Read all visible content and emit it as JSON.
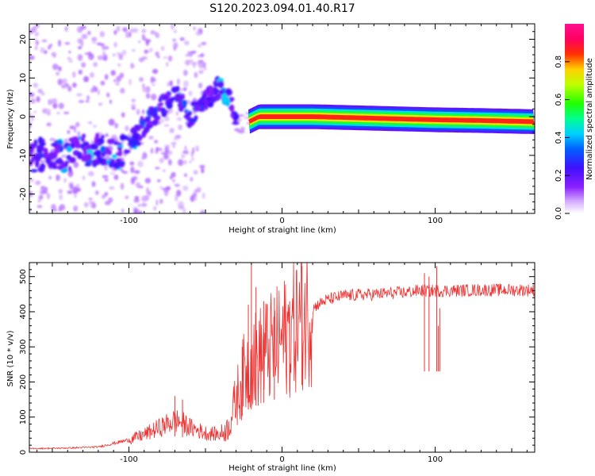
{
  "figure_title": "S120.2023.094.01.40.R17",
  "colors": {
    "snr_line": "#ee3333",
    "frame": "#000000",
    "background": "#ffffff"
  },
  "chart_data": [
    {
      "type": "heatmap",
      "title": "S120.2023.094.01.40.R17",
      "xlabel": "Height of straight line (km)",
      "ylabel": "Frequency (Hz)",
      "xlim": [
        -165,
        165
      ],
      "ylim": [
        -25,
        24
      ],
      "x_ticks": [
        -100,
        0,
        100
      ],
      "y_ticks": [
        20,
        10,
        0,
        -10,
        -20
      ],
      "grid": false,
      "colorbar": {
        "label": "Normalized spectral amplitude",
        "range": [
          0,
          1
        ],
        "ticks": [
          "0.0",
          "0.2",
          "0.4",
          "0.6",
          "0.8"
        ],
        "colormap": "rainbow (white–violet–blue–cyan–green–yellow–red–magenta)"
      },
      "ridge": {
        "description": "dominant signal frequency vs height",
        "points": [
          [
            -160,
            -10
          ],
          [
            -145,
            -10
          ],
          [
            -130,
            -9
          ],
          [
            -120,
            -8
          ],
          [
            -110,
            -10
          ],
          [
            -100,
            -8
          ],
          [
            -90,
            -2
          ],
          [
            -80,
            2
          ],
          [
            -70,
            6
          ],
          [
            -60,
            0
          ],
          [
            -55,
            2
          ],
          [
            -45,
            6
          ],
          [
            -40,
            8
          ],
          [
            -35,
            5
          ],
          [
            -30,
            -2
          ],
          [
            -25,
            -2
          ],
          [
            -20,
            -1
          ],
          [
            -15,
            0
          ],
          [
            -10,
            0
          ],
          [
            0,
            0
          ],
          [
            20,
            0
          ],
          [
            50,
            -0.3
          ],
          [
            80,
            -0.6
          ],
          [
            100,
            -0.8
          ],
          [
            130,
            -1
          ],
          [
            165,
            -1.3
          ]
        ]
      }
    },
    {
      "type": "line",
      "xlabel": "Height of straight line (km)",
      "ylabel": "SNR (10 * v/v)",
      "xlim": [
        -165,
        165
      ],
      "ylim": [
        0,
        540
      ],
      "x_ticks": [
        -100,
        0,
        100
      ],
      "y_ticks": [
        0,
        100,
        200,
        300,
        400,
        500
      ],
      "grid": false,
      "series": [
        {
          "envelope": [
            [
              -165,
              10
            ],
            [
              -140,
              12
            ],
            [
              -120,
              15
            ],
            [
              -110,
              25
            ],
            [
              -100,
              35
            ],
            [
              -90,
              50
            ],
            [
              -80,
              70
            ],
            [
              -70,
              90
            ],
            [
              -65,
              85
            ],
            [
              -60,
              70
            ],
            [
              -50,
              55
            ],
            [
              -40,
              50
            ],
            [
              -35,
              70
            ],
            [
              -30,
              150
            ],
            [
              -25,
              220
            ],
            [
              -20,
              260
            ],
            [
              -15,
              270
            ],
            [
              -10,
              290
            ],
            [
              -5,
              300
            ],
            [
              0,
              320
            ],
            [
              5,
              340
            ],
            [
              10,
              370
            ],
            [
              15,
              390
            ],
            [
              20,
              410
            ],
            [
              25,
              425
            ],
            [
              30,
              435
            ],
            [
              40,
              445
            ],
            [
              50,
              448
            ],
            [
              60,
              450
            ],
            [
              80,
              455
            ],
            [
              90,
              460
            ],
            [
              100,
              460
            ],
            [
              110,
              460
            ],
            [
              130,
              462
            ],
            [
              150,
              462
            ],
            [
              165,
              462
            ]
          ],
          "spikes": [
            [
              -20,
              535
            ],
            [
              -17,
              470
            ],
            [
              -22,
              420
            ],
            [
              -26,
              300
            ],
            [
              -12,
              430
            ],
            [
              -5,
              440
            ],
            [
              13,
              530
            ],
            [
              5,
              430
            ],
            [
              -70,
              160
            ],
            [
              -65,
              150
            ],
            [
              93,
              510
            ],
            [
              96,
              500
            ],
            [
              101,
              530
            ],
            [
              103,
              410
            ],
            [
              102,
              360
            ]
          ]
        }
      ]
    }
  ]
}
